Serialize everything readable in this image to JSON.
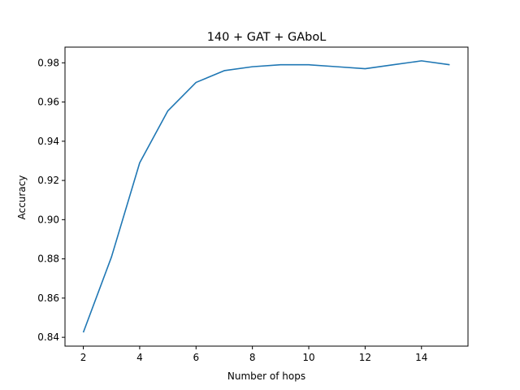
{
  "chart_data": {
    "type": "line",
    "title": "140 + GAT + GAboL",
    "xlabel": "Number of hops",
    "ylabel": "Accuracy",
    "xlim": [
      1.35,
      15.65
    ],
    "ylim": [
      0.8355,
      0.988
    ],
    "xticks": [
      2,
      4,
      6,
      8,
      10,
      12,
      14
    ],
    "xtick_labels": [
      "2",
      "4",
      "6",
      "8",
      "10",
      "12",
      "14"
    ],
    "yticks": [
      0.84,
      0.86,
      0.88,
      0.9,
      0.92,
      0.94,
      0.96,
      0.98
    ],
    "ytick_labels": [
      "0.84",
      "0.86",
      "0.88",
      "0.90",
      "0.92",
      "0.94",
      "0.96",
      "0.98"
    ],
    "grid": false,
    "legend": "none",
    "series": [
      {
        "color": "#1f77b4",
        "x": [
          2,
          3,
          4,
          5,
          6,
          7,
          8,
          9,
          10,
          11,
          12,
          13,
          14,
          15
        ],
        "y": [
          0.8425,
          0.881,
          0.929,
          0.9555,
          0.97,
          0.976,
          0.978,
          0.979,
          0.979,
          0.978,
          0.977,
          0.979,
          0.981,
          0.979
        ]
      }
    ]
  }
}
